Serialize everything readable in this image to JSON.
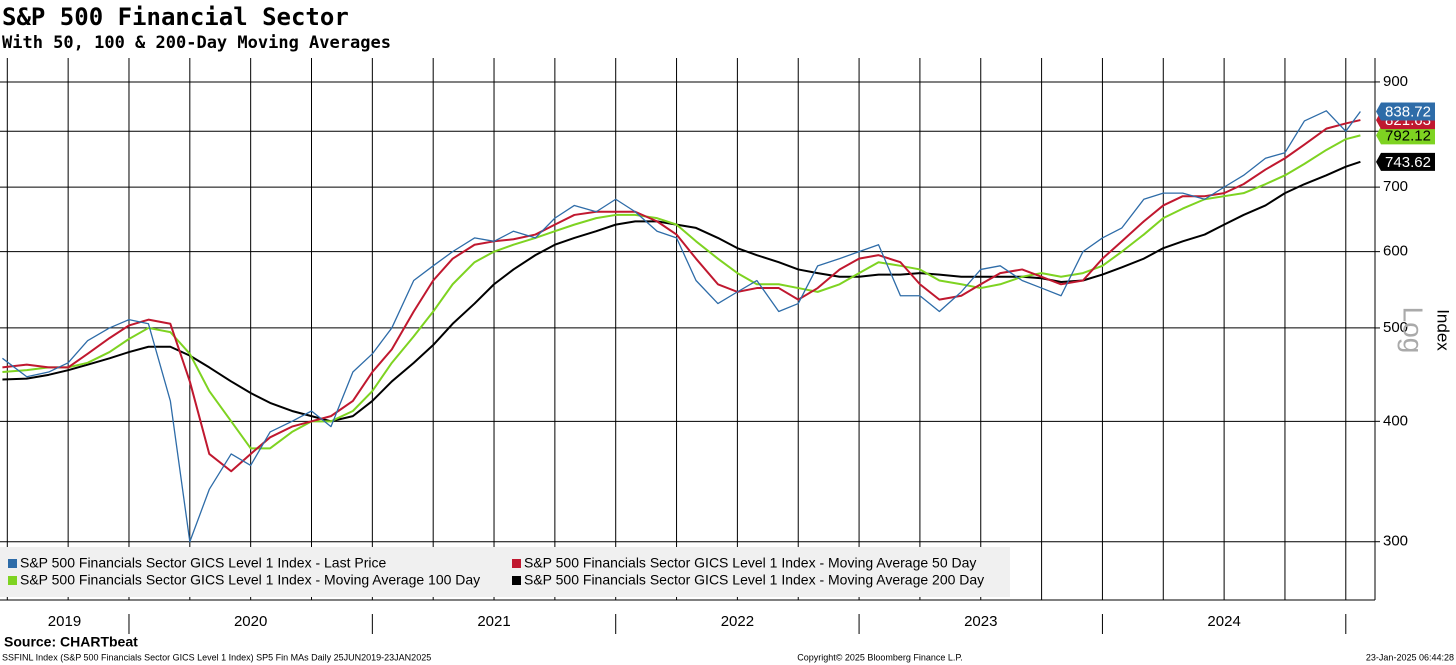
{
  "chart_data": {
    "type": "line",
    "title": "S&P 500 Financial Sector",
    "subtitle": "With 50, 100 & 200-Day Moving Averages",
    "y_axis_label": "Index",
    "scale_label": "Log",
    "log_scale": true,
    "grid": true,
    "legend_position": "bottom-left",
    "source": "Source: CHARTbeat",
    "footer_left": "SSFINL Index (S&P 500 Financials Sector GICS Level 1 Index) SP5 Fin MAs  Daily 25JUN2019-23JAN2025",
    "footer_center": "Copyright© 2025 Bloomberg Finance L.P.",
    "footer_right": "23-Jan-2025 06:44:28",
    "year_labels": [
      "2019",
      "2020",
      "2021",
      "2022",
      "2023",
      "2024"
    ],
    "x": [
      2019.48,
      2019.58,
      2019.67,
      2019.75,
      2019.83,
      2019.92,
      2020.0,
      2020.08,
      2020.17,
      2020.25,
      2020.33,
      2020.42,
      2020.5,
      2020.58,
      2020.67,
      2020.75,
      2020.83,
      2020.92,
      2021.0,
      2021.08,
      2021.17,
      2021.25,
      2021.33,
      2021.42,
      2021.5,
      2021.58,
      2021.67,
      2021.75,
      2021.83,
      2021.92,
      2022.0,
      2022.08,
      2022.17,
      2022.25,
      2022.33,
      2022.42,
      2022.5,
      2022.58,
      2022.67,
      2022.75,
      2022.83,
      2022.92,
      2023.0,
      2023.08,
      2023.17,
      2023.25,
      2023.33,
      2023.42,
      2023.5,
      2023.58,
      2023.67,
      2023.75,
      2023.83,
      2023.92,
      2024.0,
      2024.08,
      2024.17,
      2024.25,
      2024.33,
      2024.42,
      2024.5,
      2024.58,
      2024.67,
      2024.75,
      2024.83,
      2024.92,
      2025.0,
      2025.06
    ],
    "xlim": [
      2019.47,
      2025.12
    ],
    "xticks": [
      2019.5,
      2019.75,
      2020.0,
      2020.25,
      2020.5,
      2020.75,
      2021.0,
      2021.25,
      2021.5,
      2021.75,
      2022.0,
      2022.25,
      2022.5,
      2022.75,
      2023.0,
      2023.25,
      2023.5,
      2023.75,
      2024.0,
      2024.25,
      2024.5,
      2024.75,
      2025.0
    ],
    "ylim": [
      261,
      953
    ],
    "yticks": [
      300,
      400,
      500,
      600,
      700,
      800,
      900
    ],
    "series": [
      {
        "name": "S&P 500 Financials Sector GICS Level 1 Index - Last Price",
        "color": "#2e6ca8",
        "text_color": "#ffffff",
        "last_label": "838.72",
        "values": [
          465,
          445,
          450,
          460,
          485,
          500,
          510,
          505,
          420,
          300,
          340,
          370,
          360,
          390,
          400,
          410,
          395,
          450,
          470,
          500,
          560,
          580,
          600,
          620,
          615,
          630,
          620,
          650,
          670,
          660,
          680,
          660,
          630,
          620,
          560,
          530,
          545,
          560,
          520,
          530,
          580,
          590,
          600,
          610,
          540,
          540,
          520,
          545,
          575,
          580,
          560,
          550,
          540,
          600,
          620,
          635,
          680,
          690,
          690,
          680,
          700,
          720,
          750,
          760,
          820,
          840,
          800,
          838.72
        ]
      },
      {
        "name": "S&P 500 Financials Sector GICS Level 1 Index - Moving Average 50 Day",
        "color": "#c0182f",
        "text_color": "#ffffff",
        "last_label": "821.63",
        "values": [
          455,
          458,
          455,
          455,
          470,
          488,
          503,
          510,
          505,
          440,
          370,
          355,
          370,
          385,
          395,
          400,
          405,
          420,
          450,
          475,
          520,
          560,
          590,
          610,
          615,
          618,
          625,
          640,
          655,
          660,
          660,
          660,
          645,
          625,
          590,
          555,
          545,
          550,
          550,
          535,
          550,
          575,
          590,
          595,
          585,
          555,
          535,
          540,
          555,
          570,
          575,
          565,
          555,
          560,
          590,
          615,
          645,
          670,
          685,
          685,
          690,
          705,
          730,
          750,
          775,
          805,
          815,
          821.63
        ]
      },
      {
        "name": "S&P 500 Financials Sector GICS Level 1 Index - Moving Average 100 Day",
        "color": "#7ed321",
        "text_color": "#000000",
        "last_label": "792.12",
        "values": [
          450,
          452,
          455,
          455,
          460,
          472,
          487,
          500,
          495,
          470,
          430,
          400,
          375,
          375,
          390,
          400,
          400,
          410,
          430,
          460,
          490,
          520,
          555,
          585,
          600,
          610,
          620,
          630,
          640,
          650,
          655,
          655,
          650,
          640,
          615,
          590,
          570,
          555,
          555,
          550,
          545,
          555,
          570,
          585,
          580,
          575,
          560,
          555,
          550,
          555,
          565,
          570,
          565,
          570,
          580,
          600,
          625,
          650,
          665,
          680,
          685,
          690,
          705,
          720,
          740,
          765,
          785,
          792.12
        ]
      },
      {
        "name": "S&P 500 Financials Sector GICS Level 1 Index - Moving Average 200 Day",
        "color": "#000000",
        "text_color": "#ffffff",
        "last_label": "743.62",
        "values": [
          442,
          443,
          447,
          452,
          458,
          465,
          472,
          478,
          478,
          468,
          455,
          440,
          428,
          418,
          410,
          405,
          400,
          405,
          420,
          440,
          460,
          480,
          505,
          530,
          555,
          575,
          595,
          610,
          620,
          630,
          640,
          645,
          645,
          640,
          635,
          620,
          605,
          595,
          585,
          575,
          570,
          565,
          565,
          568,
          568,
          570,
          568,
          565,
          565,
          565,
          565,
          563,
          558,
          560,
          568,
          578,
          590,
          605,
          615,
          625,
          640,
          655,
          670,
          690,
          705,
          720,
          735,
          743.62
        ]
      }
    ]
  }
}
